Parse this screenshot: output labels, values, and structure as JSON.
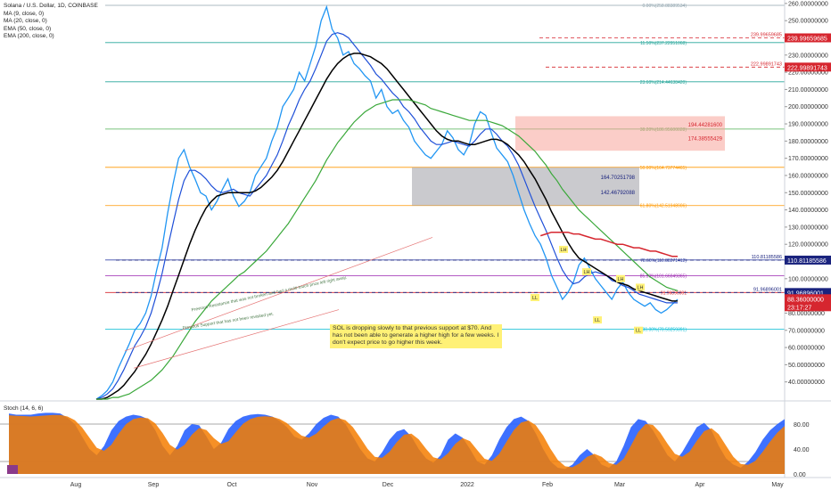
{
  "legend": {
    "title": "Solana / U.S. Dollar, 1D, COINBASE",
    "ma9": "MA (9, close, 0)",
    "ma20": "MA (20, close, 0)",
    "ema50": "EMA (50, close, 0)",
    "ema200": "EMA (200, close, 0)"
  },
  "annotations": {
    "note": "SOL is dropping slowly to that previous support at $70. And has not been able to generate a higher high for a few weeks. I don't expect price to go higher this week.",
    "resistance_text": "Previous Resistance that was not broken and had a multi-touch price left right away.",
    "support_text": "Previous Support that has not been revisited yet.",
    "ll1": "LL",
    "lh1": "LH",
    "lh2": "LH",
    "ll2": "LL",
    "lh3": "LH",
    "lh4": "LH",
    "ll3": "LL"
  },
  "stoch_label": "Stoch (14, 6, 6)",
  "colors": {
    "price": "#2196f3",
    "ma9": "#1e4fd8",
    "ma20": "#000000",
    "ema50": "#3aa83a",
    "ema200": "#d6262f",
    "stoch_k": "#2962ff",
    "stoch_d": "#f57c00"
  },
  "chart_data": {
    "type": "line",
    "title": "Solana / U.S. Dollar, 1D, COINBASE",
    "x_labels": [
      "Aug",
      "Sep",
      "Oct",
      "Nov",
      "Dec",
      "2022",
      "Feb",
      "Mar",
      "Apr",
      "May"
    ],
    "y_ticks": [
      "260.00000000",
      "250.00000000",
      "240.00000000",
      "230.00000000",
      "220.00000000",
      "210.00000000",
      "200.00000000",
      "190.00000000",
      "180.00000000",
      "170.00000000",
      "160.00000000",
      "150.00000000",
      "140.00000000",
      "130.00000000",
      "120.00000000",
      "110.00000000",
      "100.00000000",
      "90.00000000",
      "80.00000000",
      "70.00000000",
      "60.00000000",
      "50.00000000",
      "40.00000000"
    ],
    "ylim": [
      30,
      262
    ],
    "price_badges": [
      {
        "label": "239.99659685",
        "value": 240.0,
        "color": "#d6262f"
      },
      {
        "label": "222.99891743",
        "value": 223.0,
        "color": "#d6262f"
      },
      {
        "label": "110.81185586",
        "value": 110.81,
        "color": "#1a237e"
      },
      {
        "label": "91.96896001",
        "value": 91.97,
        "color": "#1a237e"
      },
      {
        "label": "88.36000000",
        "value": 88.36,
        "color": "#d6262f"
      },
      {
        "label": "23:17:27",
        "value": 83.4,
        "color": "#d6262f"
      }
    ],
    "fib_levels": [
      {
        "label": "0.00%(258.88389534)",
        "value": 258.88,
        "color": "#90a4ae"
      },
      {
        "label": "11.50%(237.22951068)",
        "value": 237.23,
        "color": "#26a69a"
      },
      {
        "label": "23.60%(214.44638420)",
        "value": 214.45,
        "color": "#26a69a"
      },
      {
        "label": "38.20%(186.95600028)",
        "value": 186.96,
        "color": "#4caf50"
      },
      {
        "label": "50.00%(164.73774465)",
        "value": 164.74,
        "color": "#ff9800"
      },
      {
        "label": "61.80%(142.51948906)",
        "value": 142.52,
        "color": "#ff9800"
      },
      {
        "label": "78.60%(110.88271412)",
        "value": 110.88,
        "color": "#3949ab"
      },
      {
        "label": "85.50%(101.66049365)",
        "value": 101.66,
        "color": "#9c27b0"
      },
      {
        "label": "91.96896001",
        "value": 91.97,
        "color": "#d6262f"
      },
      {
        "label": "100.00%(70.59259391)",
        "value": 70.59,
        "color": "#00bcd4"
      }
    ],
    "dashed_levels": [
      {
        "label": "239.99659685",
        "value": 240.0,
        "color": "#d6262f"
      },
      {
        "label": "222.99891743",
        "value": 223.0,
        "color": "#d6262f"
      },
      {
        "label": "110.81185586",
        "value": 110.81,
        "color": "#1a237e"
      },
      {
        "label": "91.96896001",
        "value": 91.97,
        "color": "#1a237e"
      }
    ],
    "zones": [
      {
        "label_top": "194.44281600",
        "label_bottom": "174.38555429",
        "high": 194.44,
        "low": 174.39,
        "color": "#f7a49b"
      },
      {
        "label_top": "164.70251798",
        "label_bottom": "142.46792088",
        "high": 164.7,
        "low": 142.47,
        "color": "#9e9ea6"
      }
    ],
    "series": [
      {
        "name": "Price",
        "values": [
          30,
          32,
          35,
          40,
          48,
          55,
          62,
          70,
          74,
          80,
          90,
          105,
          118,
          138,
          155,
          170,
          175,
          165,
          158,
          150,
          148,
          140,
          145,
          152,
          158,
          148,
          142,
          145,
          150,
          160,
          165,
          170,
          180,
          188,
          200,
          205,
          210,
          220,
          215,
          225,
          235,
          250,
          258,
          245,
          240,
          230,
          232,
          225,
          222,
          218,
          215,
          205,
          210,
          200,
          196,
          198,
          192,
          188,
          180,
          176,
          172,
          170,
          174,
          178,
          186,
          182,
          175,
          172,
          178,
          190,
          197,
          195,
          185,
          176,
          172,
          168,
          160,
          150,
          140,
          132,
          125,
          120,
          112,
          102,
          95,
          88,
          92,
          98,
          108,
          112,
          106,
          100,
          96,
          92,
          88,
          94,
          98,
          92,
          88,
          86,
          84,
          86,
          82,
          80,
          82,
          85,
          88
        ]
      },
      {
        "name": "MA (9, close, 0)",
        "values": [
          30,
          31,
          33,
          36,
          41,
          47,
          54,
          61,
          66,
          72,
          80,
          91,
          103,
          118,
          132,
          146,
          157,
          163,
          163,
          161,
          158,
          154,
          151,
          150,
          151,
          152,
          150,
          149,
          148,
          152,
          156,
          160,
          166,
          172,
          180,
          189,
          196,
          204,
          210,
          215,
          222,
          230,
          238,
          242,
          243,
          242,
          240,
          236,
          232,
          228,
          224,
          219,
          216,
          212,
          208,
          205,
          200,
          197,
          193,
          188,
          184,
          180,
          178,
          178,
          179,
          180,
          179,
          178,
          177,
          180,
          184,
          187,
          187,
          184,
          180,
          177,
          172,
          166,
          158,
          150,
          142,
          135,
          128,
          120,
          112,
          105,
          100,
          97,
          98,
          101,
          103,
          104,
          103,
          102,
          99,
          98,
          96,
          95,
          93,
          91,
          90,
          89,
          88,
          87,
          86,
          86,
          86
        ]
      },
      {
        "name": "MA (20, close, 0)",
        "values": [
          30,
          30,
          31,
          33,
          35,
          38,
          42,
          46,
          51,
          56,
          62,
          69,
          76,
          84,
          93,
          102,
          111,
          120,
          128,
          135,
          141,
          145,
          148,
          149,
          150,
          150,
          150,
          150,
          150,
          151,
          153,
          156,
          159,
          163,
          168,
          174,
          180,
          186,
          192,
          198,
          204,
          210,
          216,
          221,
          225,
          228,
          230,
          231,
          231,
          230,
          229,
          227,
          225,
          222,
          218,
          214,
          210,
          206,
          202,
          198,
          194,
          190,
          186,
          183,
          181,
          180,
          180,
          179,
          178,
          178,
          179,
          180,
          181,
          181,
          180,
          178,
          175,
          172,
          168,
          163,
          158,
          152,
          146,
          139,
          133,
          127,
          121,
          116,
          112,
          110,
          108,
          106,
          104,
          102,
          100,
          98,
          97,
          96,
          94,
          93,
          92,
          91,
          90,
          89,
          88,
          87,
          87
        ]
      },
      {
        "name": "EMA (50, close, 0)",
        "values": [
          30,
          30,
          30,
          31,
          31,
          32,
          33,
          35,
          37,
          39,
          41,
          44,
          47,
          51,
          55,
          60,
          65,
          70,
          75,
          79,
          83,
          87,
          90,
          93,
          96,
          99,
          102,
          104,
          107,
          110,
          113,
          116,
          120,
          124,
          128,
          132,
          137,
          142,
          147,
          152,
          157,
          163,
          169,
          174,
          179,
          183,
          187,
          191,
          194,
          197,
          199,
          201,
          202,
          203,
          204,
          204,
          204,
          204,
          203,
          202,
          201,
          199,
          198,
          197,
          196,
          195,
          194,
          193,
          192,
          192,
          192,
          192,
          191,
          190,
          189,
          187,
          185,
          183,
          180,
          177,
          174,
          170,
          166,
          161,
          157,
          152,
          148,
          144,
          140,
          137,
          134,
          131,
          128,
          125,
          122,
          119,
          116,
          113,
          110,
          107,
          104,
          101,
          99,
          97,
          95,
          94,
          93
        ]
      },
      {
        "name": "EMA (200, close, 0)",
        "values": [
          null,
          null,
          null,
          null,
          null,
          null,
          null,
          null,
          null,
          null,
          null,
          null,
          null,
          null,
          null,
          null,
          null,
          null,
          null,
          null,
          null,
          null,
          null,
          null,
          null,
          null,
          null,
          null,
          null,
          null,
          null,
          null,
          null,
          null,
          null,
          null,
          null,
          null,
          null,
          null,
          null,
          null,
          null,
          null,
          null,
          null,
          null,
          null,
          null,
          null,
          null,
          null,
          null,
          null,
          null,
          null,
          null,
          null,
          null,
          null,
          null,
          null,
          null,
          null,
          null,
          null,
          null,
          null,
          null,
          null,
          null,
          null,
          null,
          null,
          null,
          null,
          null,
          null,
          null,
          null,
          null,
          125,
          126,
          127,
          127,
          127,
          127,
          126,
          126,
          125,
          124,
          123,
          123,
          122,
          121,
          120,
          120,
          119,
          118,
          118,
          117,
          116,
          116,
          115,
          114,
          113,
          113
        ]
      }
    ],
    "stochastic": {
      "name": "Stoch (14, 6, 6)",
      "y_ticks": [
        "80.00",
        "40.00",
        "0.00"
      ],
      "k": [
        97,
        95,
        95,
        95,
        97,
        98,
        98,
        97,
        90,
        80,
        60,
        40,
        30,
        45,
        70,
        85,
        92,
        95,
        93,
        88,
        70,
        45,
        30,
        45,
        70,
        80,
        78,
        60,
        40,
        50,
        72,
        85,
        92,
        95,
        96,
        95,
        92,
        85,
        75,
        60,
        55,
        65,
        80,
        90,
        95,
        92,
        80,
        60,
        40,
        25,
        20,
        35,
        55,
        68,
        72,
        60,
        40,
        25,
        18,
        30,
        55,
        65,
        58,
        40,
        20,
        15,
        30,
        55,
        75,
        88,
        92,
        85,
        65,
        40,
        20,
        10,
        8,
        15,
        30,
        40,
        30,
        15,
        10,
        20,
        45,
        75,
        88,
        85,
        70,
        50,
        30,
        20,
        35,
        55,
        75,
        82,
        70,
        45,
        25,
        15,
        10,
        20,
        35,
        55,
        70,
        80,
        88
      ]
    }
  }
}
